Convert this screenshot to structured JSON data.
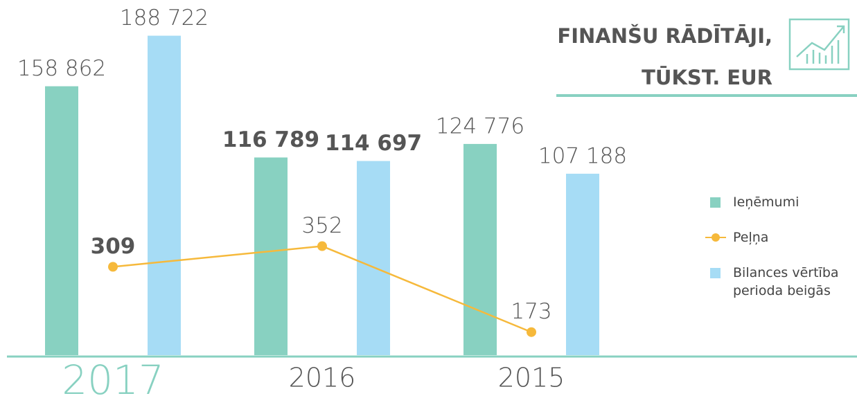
{
  "chart_data": {
    "type": "bar",
    "title": "FINANŠU RĀDĪTĀJI, TŪKST. EUR",
    "categories": [
      "2017",
      "2016",
      "2015"
    ],
    "series": [
      {
        "name": "Ieņēmumi",
        "type": "bar",
        "color": "#88d1c1",
        "values": [
          158862,
          116789,
          124776
        ],
        "value_labels": [
          "158 862",
          "116 789",
          "124 776"
        ]
      },
      {
        "name": "Peļņa",
        "type": "line",
        "axis": "y2",
        "color": "#f6b93b",
        "values": [
          309,
          352,
          173
        ]
      },
      {
        "name": "Bilances vērtība perioda beigās",
        "type": "bar",
        "color": "#a6dcf5",
        "values": [
          188722,
          114697,
          107188
        ],
        "value_labels": [
          "188 722",
          "114 697",
          "107 188"
        ]
      }
    ],
    "ylim": [
      0,
      200000
    ],
    "y2lim": [
      125,
      830
    ],
    "legend": "right"
  }
}
